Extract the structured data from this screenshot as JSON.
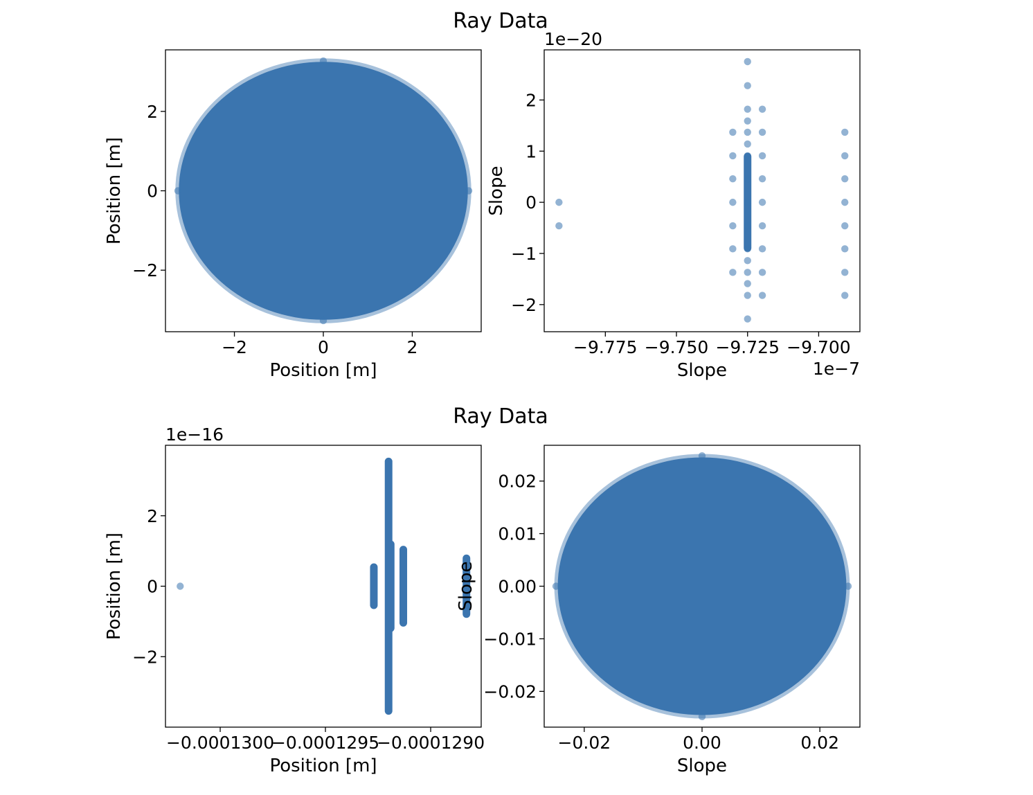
{
  "figure": {
    "titles": [
      "Ray Data",
      "Ray Data"
    ],
    "marker_color": "#3b75af"
  },
  "chart_data": [
    {
      "type": "scatter",
      "title": "",
      "xlabel": "Position [m]",
      "ylabel": "Position [m]",
      "xlim": [
        -3.55,
        3.55
      ],
      "ylim": [
        -3.55,
        3.55
      ],
      "xticks": [
        -2,
        0,
        2
      ],
      "xticklabels": [
        "−2",
        "0",
        "2"
      ],
      "yticks": [
        -2,
        0,
        2
      ],
      "yticklabels": [
        "−2",
        "0",
        "2"
      ],
      "x_offset": "",
      "y_offset": "",
      "shapes": [
        {
          "kind": "disk",
          "cx": 0,
          "cy": 0,
          "rx": 3.25,
          "ry": 3.25
        }
      ],
      "points": [
        [
          0,
          3.27
        ],
        [
          0,
          -3.27
        ],
        [
          -3.27,
          0
        ],
        [
          3.27,
          0
        ]
      ]
    },
    {
      "type": "scatter",
      "title": "",
      "xlabel": "Slope",
      "ylabel": "Slope",
      "xlim": [
        -9.7965,
        -9.6855
      ],
      "ylim": [
        -2.53,
        2.98
      ],
      "xticks": [
        -9.775,
        -9.75,
        -9.725,
        -9.7
      ],
      "xticklabels": [
        "−9.775",
        "−9.750",
        "−9.725",
        "−9.700"
      ],
      "yticks": [
        -2,
        -1,
        0,
        1,
        2
      ],
      "yticklabels": [
        "−2",
        "−1",
        "0",
        "1",
        "2"
      ],
      "x_offset": "1e−7",
      "y_offset": "1e−20",
      "shapes": [
        {
          "kind": "bar",
          "x": -9.725,
          "y0": -0.9,
          "y1": 0.9
        }
      ],
      "points": [
        [
          -9.7913,
          0
        ],
        [
          -9.7913,
          -0.46
        ],
        [
          -9.725,
          2.75
        ],
        [
          -9.725,
          2.28
        ],
        [
          -9.725,
          1.82
        ],
        [
          -9.725,
          1.59
        ],
        [
          -9.725,
          1.37
        ],
        [
          -9.725,
          1.14
        ],
        [
          -9.725,
          0.91
        ],
        [
          -9.725,
          0.46
        ],
        [
          -9.725,
          0
        ],
        [
          -9.725,
          -0.46
        ],
        [
          -9.725,
          -0.91
        ],
        [
          -9.725,
          -1.14
        ],
        [
          -9.725,
          -1.37
        ],
        [
          -9.725,
          -1.59
        ],
        [
          -9.725,
          -1.82
        ],
        [
          -9.725,
          -2.28
        ],
        [
          -9.7302,
          1.37
        ],
        [
          -9.7302,
          0.91
        ],
        [
          -9.7302,
          0.46
        ],
        [
          -9.7302,
          0
        ],
        [
          -9.7302,
          -0.46
        ],
        [
          -9.7302,
          -0.91
        ],
        [
          -9.7302,
          -1.37
        ],
        [
          -9.7198,
          1.82
        ],
        [
          -9.7198,
          1.37
        ],
        [
          -9.7198,
          0.91
        ],
        [
          -9.7198,
          0.46
        ],
        [
          -9.7198,
          0
        ],
        [
          -9.7198,
          -0.46
        ],
        [
          -9.7198,
          -0.91
        ],
        [
          -9.7198,
          -1.37
        ],
        [
          -9.7198,
          -1.82
        ],
        [
          -9.6908,
          1.37
        ],
        [
          -9.6908,
          0.91
        ],
        [
          -9.6908,
          0.46
        ],
        [
          -9.6908,
          0
        ],
        [
          -9.6908,
          -0.46
        ],
        [
          -9.6908,
          -0.91
        ],
        [
          -9.6908,
          -1.37
        ],
        [
          -9.6908,
          -1.82
        ]
      ]
    },
    {
      "type": "scatter",
      "title": "",
      "xlabel": "Position [m]",
      "ylabel": "Position [m]",
      "xlim": [
        -0.00013026,
        -0.00012876
      ],
      "ylim": [
        -4.0,
        4.0
      ],
      "xticks": [
        -0.00013,
        -0.0001295,
        -0.000129
      ],
      "xticklabels": [
        "−0.0001300",
        "−0.0001295",
        "−0.0001290"
      ],
      "yticks": [
        -2,
        0,
        2
      ],
      "yticklabels": [
        "−2",
        "0",
        "2"
      ],
      "x_offset": "",
      "y_offset": "1e−16",
      "shapes": [
        {
          "kind": "bar",
          "x": -0.00012927,
          "y0": -0.55,
          "y1": 0.55
        },
        {
          "kind": "bar",
          "x": -0.0001292,
          "y0": -3.55,
          "y1": 3.55
        },
        {
          "kind": "bar",
          "x": -0.00012919,
          "y0": -1.2,
          "y1": 1.2
        },
        {
          "kind": "bar",
          "x": -0.00012913,
          "y0": -1.05,
          "y1": 1.05
        },
        {
          "kind": "bar",
          "x": -0.00012883,
          "y0": -0.8,
          "y1": 0.8
        }
      ],
      "points": [
        [
          -0.00013019,
          0
        ]
      ]
    },
    {
      "type": "scatter",
      "title": "",
      "xlabel": "Slope",
      "ylabel": "Slope",
      "xlim": [
        -0.0268,
        0.0268
      ],
      "ylim": [
        -0.0268,
        0.0268
      ],
      "xticks": [
        -0.02,
        0,
        0.02
      ],
      "xticklabels": [
        "−0.02",
        "0.00",
        "0.02"
      ],
      "yticks": [
        -0.02,
        -0.01,
        0,
        0.01,
        0.02
      ],
      "yticklabels": [
        "−0.02",
        "−0.01",
        "0.00",
        "0.01",
        "0.02"
      ],
      "x_offset": "",
      "y_offset": "",
      "shapes": [
        {
          "kind": "disk",
          "cx": 0,
          "cy": 0,
          "rx": 0.0245,
          "ry": 0.0245
        }
      ],
      "points": [
        [
          0,
          0.0248
        ],
        [
          0,
          -0.0248
        ],
        [
          -0.0248,
          0
        ],
        [
          0.0248,
          0
        ]
      ]
    }
  ]
}
